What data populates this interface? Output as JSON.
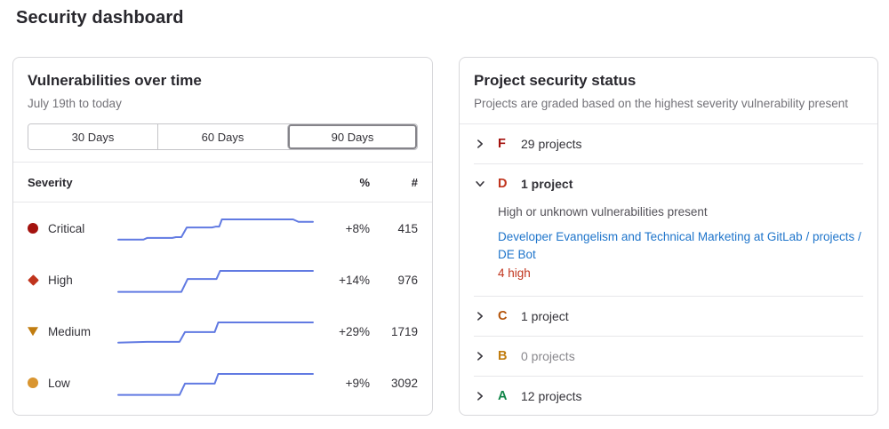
{
  "page": {
    "title": "Security dashboard"
  },
  "vulnerabilities_panel": {
    "title": "Vulnerabilities over time",
    "subtitle": "July 19th to today",
    "range_buttons": [
      {
        "label": "30 Days",
        "selected": false
      },
      {
        "label": "60 Days",
        "selected": false
      },
      {
        "label": "90 Days",
        "selected": true
      }
    ],
    "columns": {
      "severity": "Severity",
      "percent": "%",
      "count": "#"
    },
    "sparkline_color": "#617ae2",
    "rows": [
      {
        "label": "Critical",
        "icon": "severity-critical-icon",
        "shape": "circle",
        "color": "#a4120e",
        "percent": "+8%",
        "count": "415",
        "sparkline": [
          [
            2,
            36
          ],
          [
            30,
            36
          ],
          [
            34,
            34
          ],
          [
            62,
            34
          ],
          [
            66,
            33
          ],
          [
            72,
            33
          ],
          [
            78,
            21
          ],
          [
            106,
            21
          ],
          [
            110,
            20
          ],
          [
            114,
            20
          ],
          [
            117,
            11
          ],
          [
            196,
            11
          ],
          [
            202,
            14
          ],
          [
            218,
            14
          ]
        ]
      },
      {
        "label": "High",
        "icon": "severity-high-icon",
        "shape": "diamond",
        "color": "#c0341d",
        "percent": "+14%",
        "count": "976",
        "sparkline": [
          [
            2,
            37
          ],
          [
            72,
            37
          ],
          [
            79,
            21
          ],
          [
            111,
            21
          ],
          [
            115,
            11
          ],
          [
            218,
            11
          ]
        ]
      },
      {
        "label": "Medium",
        "icon": "severity-medium-icon",
        "shape": "triangle-down",
        "color": "#c17d10",
        "percent": "+29%",
        "count": "1719",
        "sparkline": [
          [
            2,
            36
          ],
          [
            34,
            35
          ],
          [
            70,
            35
          ],
          [
            76,
            23
          ],
          [
            109,
            23
          ],
          [
            113,
            11
          ],
          [
            218,
            11
          ]
        ]
      },
      {
        "label": "Low",
        "icon": "severity-low-icon",
        "shape": "circle",
        "color": "#d99530",
        "percent": "+9%",
        "count": "3092",
        "sparkline": [
          [
            2,
            37
          ],
          [
            70,
            37
          ],
          [
            76,
            23
          ],
          [
            109,
            23
          ],
          [
            113,
            11
          ],
          [
            218,
            11
          ]
        ]
      }
    ]
  },
  "project_status_panel": {
    "title": "Project security status",
    "subtitle": "Projects are graded based on the highest severity vulnerability present",
    "link_color": "#1f75cb",
    "grades": [
      {
        "letter": "F",
        "color": "#a4120e",
        "count_label": "29 projects",
        "expanded": false
      },
      {
        "letter": "D",
        "color": "#c0341d",
        "count_label": "1 project",
        "expanded": true,
        "description": "High or unknown vulnerabilities present",
        "project_link": "Developer Evangelism and Technical Marketing at GitLab / projects / DE Bot",
        "finding": "4 high",
        "finding_color": "#c0341d"
      },
      {
        "letter": "C",
        "color": "#b45309",
        "count_label": "1 project",
        "expanded": false
      },
      {
        "letter": "B",
        "color": "#c17d10",
        "count_label": "0 projects",
        "expanded": false,
        "muted": true
      },
      {
        "letter": "A",
        "color": "#108548",
        "count_label": "12 projects",
        "expanded": false
      }
    ]
  }
}
